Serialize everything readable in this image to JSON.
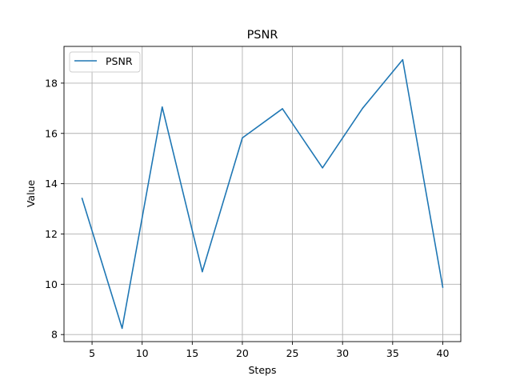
{
  "chart_data": {
    "type": "line",
    "title": "PSNR",
    "xlabel": "Steps",
    "ylabel": "Value",
    "xlim": [
      2.2,
      41.8
    ],
    "ylim": [
      7.72,
      19.46
    ],
    "xticks": [
      5,
      10,
      15,
      20,
      25,
      30,
      35,
      40
    ],
    "yticks": [
      8,
      10,
      12,
      14,
      16,
      18
    ],
    "grid": true,
    "legend_position": "top-left",
    "series": [
      {
        "name": "PSNR",
        "color": "#1f77b4",
        "x": [
          4,
          8,
          12,
          16,
          20,
          24,
          28,
          32,
          36,
          40
        ],
        "y": [
          13.42,
          8.25,
          17.05,
          10.5,
          15.82,
          16.98,
          14.63,
          17.0,
          18.93,
          9.88
        ]
      }
    ]
  }
}
